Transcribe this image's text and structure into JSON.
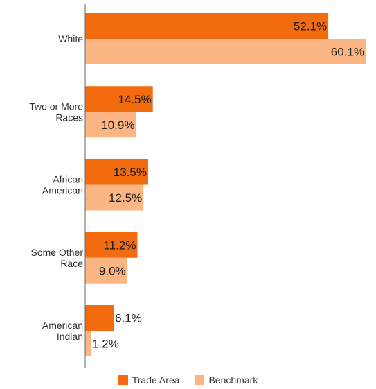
{
  "chart_data": {
    "type": "bar",
    "orientation": "horizontal",
    "categories": [
      "White",
      "Two or More Races",
      "African American",
      "Some Other Race",
      "American Indian"
    ],
    "category_lines": [
      [
        "White"
      ],
      [
        "Two or More",
        "Races"
      ],
      [
        "African",
        "American"
      ],
      [
        "Some Other",
        "Race"
      ],
      [
        "American",
        "Indian"
      ]
    ],
    "series": [
      {
        "name": "Trade Area",
        "color": "#f26b0f",
        "values": [
          52.1,
          14.5,
          13.5,
          11.2,
          6.1
        ],
        "labels": [
          "52.1%",
          "14.5%",
          "13.5%",
          "11.2%",
          "6.1%"
        ]
      },
      {
        "name": "Benchmark",
        "color": "#fbb684",
        "values": [
          60.1,
          10.9,
          12.5,
          9.0,
          1.2
        ],
        "labels": [
          "60.1%",
          "10.9%",
          "12.5%",
          "9.0%",
          "1.2%"
        ]
      }
    ],
    "xlim": [
      0,
      60.1
    ],
    "grid": false,
    "legend_position": "bottom"
  }
}
